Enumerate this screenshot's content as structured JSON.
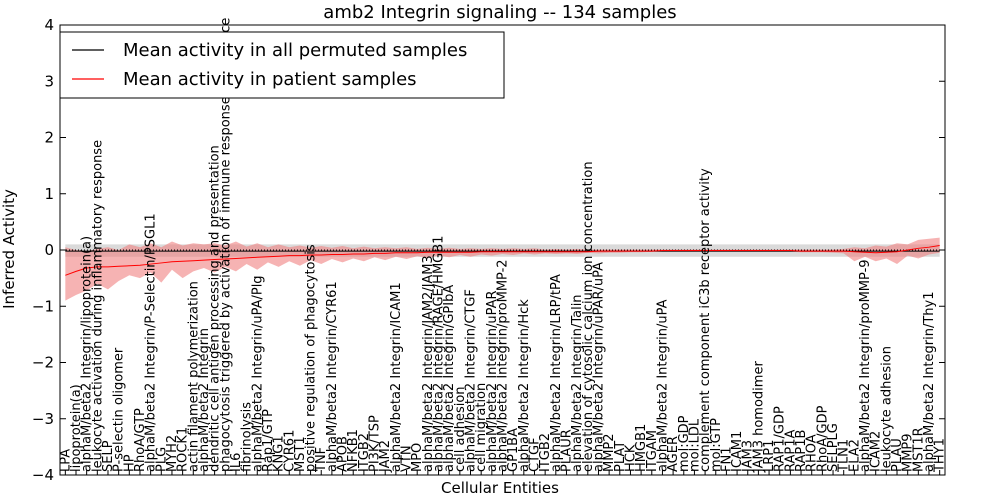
{
  "chart_data": {
    "type": "line",
    "title": "amb2 Integrin signaling -- 134 samples",
    "xlabel": "Cellular Entities",
    "ylabel": "Inferred Activity",
    "ylim": [
      -4,
      4
    ],
    "yticks": [
      -4,
      -3,
      -2,
      -1,
      0,
      1,
      2,
      3,
      4
    ],
    "grid": false,
    "legend_position": "top-left",
    "reference_line": 0,
    "colors": {
      "permuted": "#000000",
      "patient": "#ff0000",
      "patient_band": "#f08080",
      "permuted_band": "#bbbbbb"
    },
    "categories": [
      "LPA",
      "lipoprotein(a)",
      "alphaM/beta2 Integrin/lipoprotein(a)",
      "leukocyte activation during inflammatory response",
      "SELP",
      "P-selectin oligomer",
      "HP",
      "RhoA/GTP",
      "alphaM/beta2 Integrin/P-Selectin/PSGL1",
      "PLG",
      "MYH2",
      "ROCK1",
      "actin filament polymerization",
      "alphaM/beta2 Integrin",
      "dendritic cell antigen processing and presentation",
      "phagocytosis triggered by activation of immune response cell surface",
      "IL6",
      "fibrinolysis",
      "alphaM/beta2 Integrin/uPA/Plg",
      "Rap1/GTP",
      "KNG1",
      "CYR61",
      "MST1",
      "positive regulation of phagocytosis",
      "TNF",
      "alphaM/beta2 Integrin/CYR61",
      "APOB",
      "NFKB1",
      "ITGB2",
      "PI3K/TSP",
      "JAM2",
      "alphaM/beta2 Integrin/ICAM1",
      "VTN",
      "MPO",
      "alphaM/beta2 Integrin/JAM2/JAM3",
      "alphaM/beta2 Integrin/RAGE/HMGB1",
      "alphaM/beta2 Integrin/GPIbA",
      "cell adhesion",
      "alphaM/beta2 Integrin/CTGF",
      "cell migration",
      "alphaM/beta2 Integrin/uPAR",
      "alphaM/beta2 Integrin/proMMP-2",
      "GP1BA",
      "alphaM/beta2 Integrin/Hck",
      "CTGF",
      "ITGB2",
      "alphaM/beta2 Integrin/LRP/tPA",
      "PLAUR",
      "alphaM/beta2 Integrin/Talin",
      "elevation of cytosolic calcium ion concentration",
      "alphaM/beta2 Integrin/uPAR/uPA",
      "MMP2",
      "PLAT",
      "HCK",
      "HMGB1",
      "ITGAM",
      "alphaM/beta2 Integrin/uPA",
      "AGER",
      "mol:GDP",
      "mol:LDL",
      "complement component iC3b receptor activity",
      "mol:GTP",
      "FN1",
      "ICAM1",
      "JAM3",
      "JAM3 homodimer",
      "LRP1",
      "RAP1/GDP",
      "RAP1A",
      "RAP1B",
      "RHOA",
      "RhoA/GDP",
      "SELPLG",
      "TLN1",
      "ELA2",
      "alphaM/beta2 Integrin/proMMP-9",
      "ICAM2",
      "leukocyte adhesion",
      "PLAU",
      "MMP9",
      "MST1R",
      "alphaM/beta2 Integrin/Thy1",
      "THY1"
    ],
    "series": [
      {
        "name": "Mean activity in all permuted samples",
        "values": [
          -0.02,
          -0.02,
          -0.02,
          -0.02,
          -0.02,
          -0.02,
          -0.02,
          -0.02,
          -0.02,
          -0.02,
          -0.02,
          -0.02,
          -0.02,
          -0.02,
          -0.02,
          -0.02,
          -0.02,
          -0.02,
          -0.02,
          -0.02,
          -0.02,
          -0.02,
          -0.02,
          -0.02,
          -0.02,
          -0.02,
          -0.02,
          -0.02,
          -0.02,
          -0.02,
          -0.02,
          -0.02,
          -0.02,
          -0.02,
          -0.02,
          -0.02,
          -0.02,
          -0.02,
          -0.02,
          -0.02,
          -0.02,
          -0.02,
          -0.02,
          -0.02,
          -0.02,
          -0.02,
          -0.02,
          -0.02,
          -0.02,
          -0.02,
          -0.02,
          -0.02,
          -0.02,
          -0.02,
          -0.02,
          -0.02,
          -0.02,
          -0.02,
          -0.02,
          -0.02,
          -0.02,
          -0.02,
          -0.02,
          -0.02,
          -0.02,
          -0.02,
          -0.02,
          -0.02,
          -0.02,
          -0.02,
          -0.02,
          -0.02,
          -0.02,
          -0.02,
          -0.02,
          -0.02,
          -0.02,
          -0.02,
          -0.02,
          -0.02,
          -0.02,
          -0.02,
          -0.02
        ],
        "lower": [
          -0.12,
          -0.12,
          -0.12,
          -0.12,
          -0.12,
          -0.12,
          -0.12,
          -0.12,
          -0.12,
          -0.12,
          -0.12,
          -0.12,
          -0.12,
          -0.12,
          -0.12,
          -0.12,
          -0.12,
          -0.12,
          -0.12,
          -0.12,
          -0.12,
          -0.12,
          -0.12,
          -0.12,
          -0.12,
          -0.12,
          -0.12,
          -0.12,
          -0.12,
          -0.12,
          -0.12,
          -0.12,
          -0.12,
          -0.12,
          -0.12,
          -0.12,
          -0.12,
          -0.12,
          -0.12,
          -0.12,
          -0.12,
          -0.12,
          -0.12,
          -0.12,
          -0.12,
          -0.12,
          -0.12,
          -0.12,
          -0.12,
          -0.12,
          -0.12,
          -0.12,
          -0.12,
          -0.12,
          -0.12,
          -0.12,
          -0.12,
          -0.12,
          -0.12,
          -0.12,
          -0.12,
          -0.12,
          -0.12,
          -0.12,
          -0.12,
          -0.12,
          -0.12,
          -0.12,
          -0.12,
          -0.12,
          -0.12,
          -0.12,
          -0.12,
          -0.12,
          -0.12,
          -0.12,
          -0.12,
          -0.12,
          -0.12,
          -0.12,
          -0.12,
          -0.12,
          -0.12
        ],
        "upper": [
          0.1,
          0.1,
          0.1,
          0.1,
          0.1,
          0.1,
          0.1,
          0.1,
          0.1,
          0.1,
          0.1,
          0.1,
          0.1,
          0.1,
          0.1,
          0.1,
          0.1,
          0.1,
          0.1,
          0.1,
          0.1,
          0.1,
          0.1,
          0.1,
          0.1,
          0.1,
          0.1,
          0.1,
          0.1,
          0.1,
          0.1,
          0.1,
          0.1,
          0.1,
          0.1,
          0.1,
          0.1,
          0.1,
          0.1,
          0.1,
          0.1,
          0.1,
          0.1,
          0.1,
          0.1,
          0.1,
          0.1,
          0.1,
          0.1,
          0.1,
          0.1,
          0.1,
          0.1,
          0.1,
          0.1,
          0.1,
          0.1,
          0.1,
          0.1,
          0.1,
          0.1,
          0.1,
          0.1,
          0.1,
          0.1,
          0.1,
          0.1,
          0.1,
          0.1,
          0.1,
          0.1,
          0.1,
          0.1,
          0.1,
          0.1,
          0.1,
          0.1,
          0.1,
          0.1,
          0.1,
          0.1,
          0.1,
          0.1
        ]
      },
      {
        "name": "Mean activity in patient samples",
        "values": [
          -0.45,
          -0.38,
          -0.32,
          -0.3,
          -0.3,
          -0.29,
          -0.28,
          -0.27,
          -0.25,
          -0.23,
          -0.21,
          -0.2,
          -0.19,
          -0.18,
          -0.17,
          -0.16,
          -0.15,
          -0.14,
          -0.13,
          -0.12,
          -0.11,
          -0.1,
          -0.1,
          -0.09,
          -0.09,
          -0.08,
          -0.08,
          -0.07,
          -0.07,
          -0.06,
          -0.06,
          -0.05,
          -0.05,
          -0.05,
          -0.04,
          -0.04,
          -0.04,
          -0.04,
          -0.04,
          -0.03,
          -0.03,
          -0.03,
          -0.03,
          -0.03,
          -0.03,
          -0.03,
          -0.03,
          -0.03,
          -0.03,
          -0.03,
          -0.02,
          -0.02,
          -0.02,
          -0.02,
          -0.02,
          -0.02,
          -0.01,
          -0.01,
          -0.01,
          -0.01,
          -0.01,
          -0.01,
          -0.01,
          -0.01,
          -0.01,
          -0.01,
          -0.01,
          -0.01,
          -0.01,
          -0.02,
          -0.02,
          -0.02,
          -0.02,
          -0.02,
          -0.03,
          -0.04,
          -0.05,
          -0.04,
          -0.03,
          0.0,
          0.03,
          0.05,
          0.08
        ],
        "lower": [
          -0.9,
          -0.8,
          -0.72,
          -0.6,
          -0.7,
          -0.55,
          -0.45,
          -0.5,
          -0.4,
          -0.58,
          -0.35,
          -0.5,
          -0.38,
          -0.32,
          -0.4,
          -0.3,
          -0.38,
          -0.25,
          -0.35,
          -0.22,
          -0.3,
          -0.2,
          -0.28,
          -0.18,
          -0.25,
          -0.16,
          -0.22,
          -0.15,
          -0.2,
          -0.13,
          -0.18,
          -0.12,
          -0.16,
          -0.11,
          -0.14,
          -0.1,
          -0.13,
          -0.09,
          -0.12,
          -0.08,
          -0.1,
          -0.07,
          -0.09,
          -0.06,
          -0.08,
          -0.06,
          -0.07,
          -0.06,
          -0.07,
          -0.05,
          -0.06,
          -0.05,
          -0.05,
          -0.04,
          -0.04,
          -0.03,
          -0.03,
          -0.03,
          -0.03,
          -0.03,
          -0.03,
          -0.03,
          -0.03,
          -0.03,
          -0.03,
          -0.03,
          -0.03,
          -0.03,
          -0.03,
          -0.04,
          -0.04,
          -0.04,
          -0.05,
          -0.06,
          -0.2,
          -0.12,
          -0.2,
          -0.15,
          -0.25,
          -0.1,
          -0.15,
          -0.08,
          -0.05
        ],
        "upper": [
          0.05,
          0.0,
          -0.02,
          0.02,
          0.05,
          0.0,
          0.1,
          0.05,
          0.12,
          0.05,
          0.15,
          0.08,
          0.12,
          0.1,
          0.12,
          0.08,
          0.15,
          0.06,
          0.12,
          0.05,
          0.1,
          0.05,
          0.08,
          0.04,
          0.07,
          0.04,
          0.07,
          0.03,
          0.06,
          0.03,
          0.05,
          0.03,
          0.05,
          0.02,
          0.04,
          0.02,
          0.04,
          0.02,
          0.03,
          0.02,
          0.03,
          0.02,
          0.03,
          0.02,
          0.03,
          0.01,
          0.02,
          0.01,
          0.02,
          0.01,
          0.01,
          0.01,
          0.01,
          0.01,
          0.01,
          0.01,
          0.01,
          0.01,
          0.01,
          0.01,
          0.01,
          0.01,
          0.01,
          0.01,
          0.01,
          0.01,
          0.01,
          0.01,
          0.01,
          0.01,
          0.01,
          0.01,
          0.01,
          0.02,
          0.05,
          0.03,
          0.08,
          0.06,
          0.12,
          0.1,
          0.18,
          0.2,
          0.22
        ]
      }
    ]
  }
}
